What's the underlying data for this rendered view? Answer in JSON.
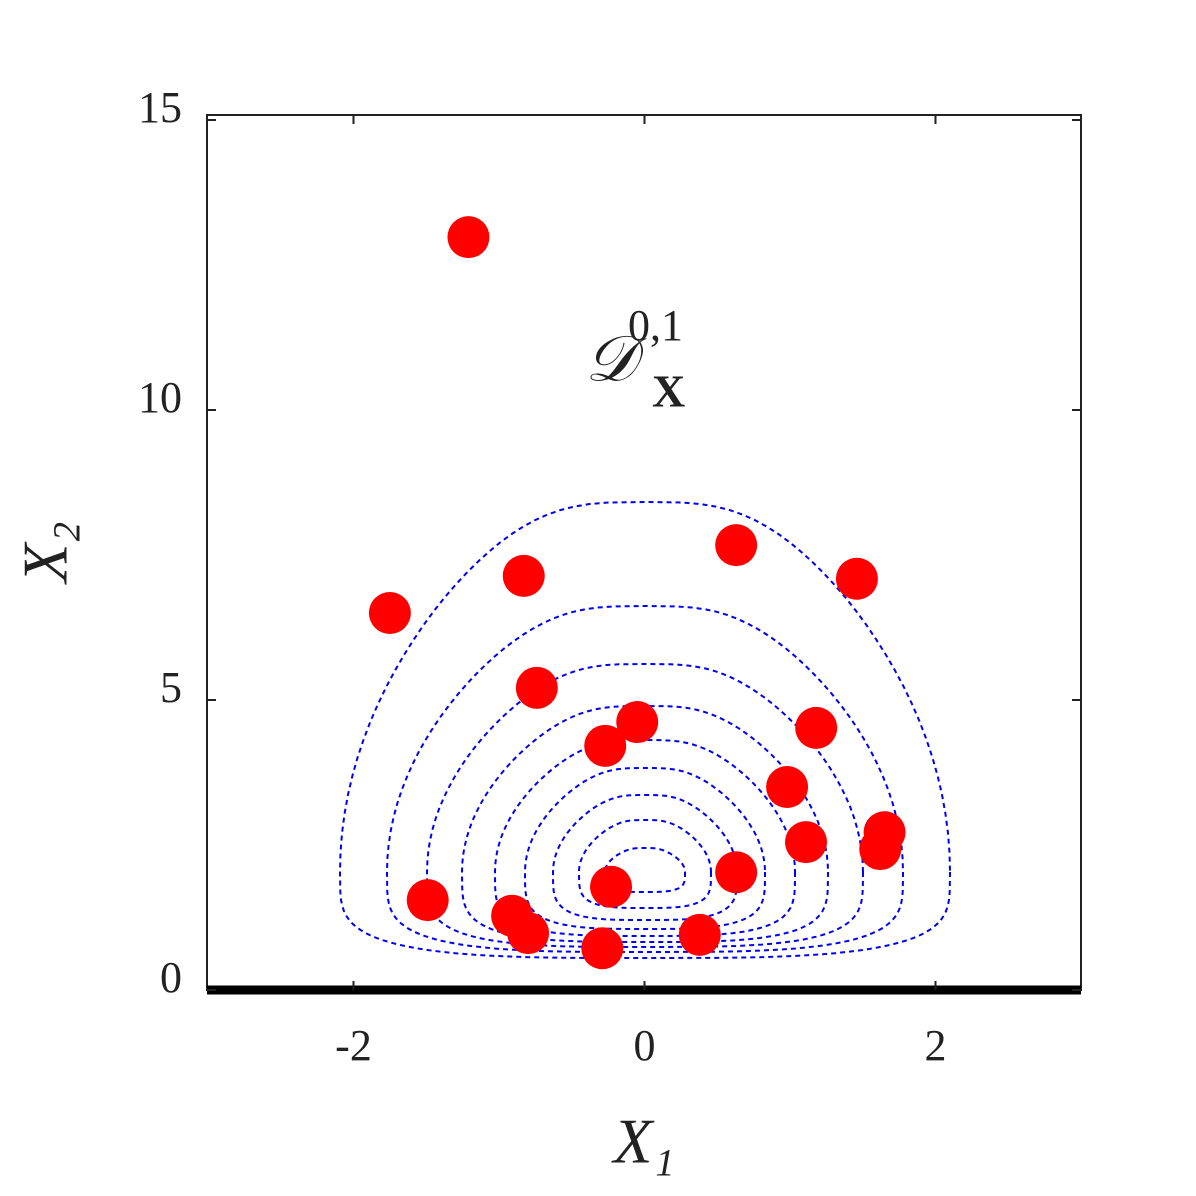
{
  "chart_data": {
    "type": "scatter",
    "xlabel": "X₁",
    "ylabel": "X₂",
    "annotation": {
      "text": "𝒟",
      "superscript": "0,1",
      "subscript": "X"
    },
    "xlim": [
      -3,
      3
    ],
    "ylim": [
      0,
      15
    ],
    "xticks": [
      -2,
      0,
      2
    ],
    "yticks": [
      0,
      5,
      10,
      15
    ],
    "series": [
      {
        "color": "#ff0000",
        "x": [
          -1.21,
          -0.83,
          -1.75,
          0.63,
          1.46,
          -0.74,
          -0.05,
          -0.27,
          1.18,
          0.98,
          1.11,
          1.65,
          1.62,
          0.63,
          -0.23,
          -1.49,
          -0.91,
          -0.8,
          -0.29,
          0.38
        ],
        "values": [
          12.98,
          7.14,
          6.5,
          7.67,
          7.09,
          5.21,
          4.62,
          4.21,
          4.52,
          3.5,
          2.55,
          2.72,
          2.43,
          2.03,
          1.78,
          1.55,
          1.28,
          0.98,
          0.72,
          0.95
        ]
      }
    ]
  }
}
